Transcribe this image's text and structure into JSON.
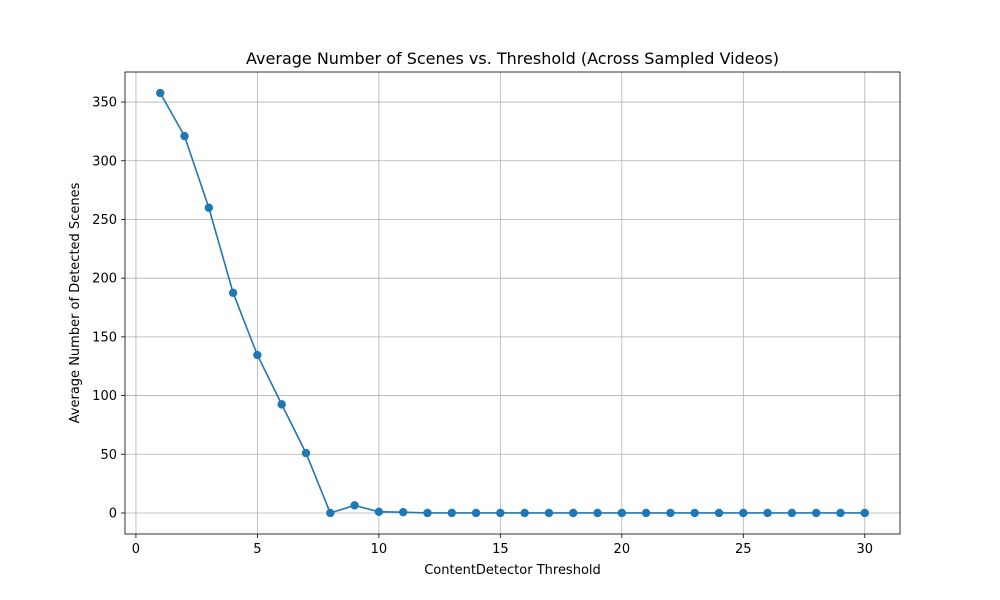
{
  "chart_data": {
    "type": "line",
    "title": "Average Number of Scenes vs. Threshold (Across Sampled Videos)",
    "xlabel": "ContentDetector Threshold",
    "ylabel": "Average Number of Detected Scenes",
    "xlim": [
      -0.45,
      31.45
    ],
    "ylim": [
      -17.9,
      375.6
    ],
    "xticks": [
      0,
      5,
      10,
      15,
      20,
      25,
      30
    ],
    "yticks": [
      0,
      50,
      100,
      150,
      200,
      250,
      300,
      350
    ],
    "grid": true,
    "series": [
      {
        "color": "#1f77b4",
        "marker": "circle",
        "x": [
          1,
          2,
          3,
          4,
          5,
          6,
          7,
          8,
          9,
          10,
          11,
          12,
          13,
          14,
          15,
          16,
          17,
          18,
          19,
          20,
          21,
          22,
          23,
          24,
          25,
          26,
          27,
          28,
          29,
          30
        ],
        "y": [
          357.7,
          321,
          260,
          187.5,
          134.5,
          92.5,
          51,
          0,
          6.5,
          1,
          0.7,
          0,
          0,
          0,
          0,
          0,
          0,
          0,
          0,
          0,
          0,
          0,
          0,
          0,
          0,
          0,
          0,
          0,
          0,
          0
        ]
      }
    ]
  }
}
